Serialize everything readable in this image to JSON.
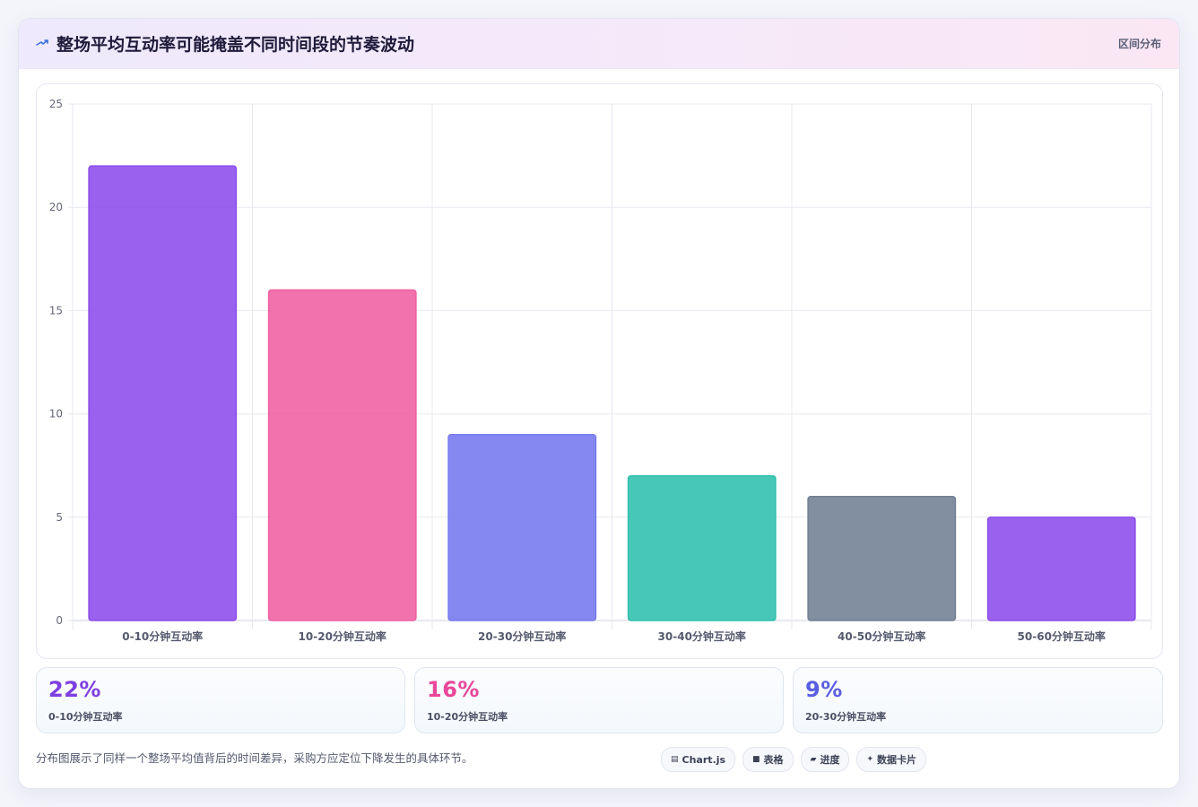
{
  "header": {
    "title": "整场平均互动率可能掩盖不同时间段的节奏波动",
    "badge": "区间分布"
  },
  "chart_data": {
    "type": "bar",
    "categories": [
      "0-10分钟互动率",
      "10-20分钟互动率",
      "20-30分钟互动率",
      "30-40分钟互动率",
      "40-50分钟互动率",
      "50-60分钟互动率"
    ],
    "values": [
      22,
      16,
      9,
      7,
      6,
      5
    ],
    "colors": [
      "#8b4bec",
      "#ef5ea2",
      "#7578ef",
      "#2dbfab",
      "#717f93",
      "#8b4bec"
    ],
    "ylim": [
      0,
      25
    ],
    "yticks": [
      0,
      5,
      10,
      15,
      20,
      25
    ],
    "grid": true,
    "legend": "none"
  },
  "stats": [
    {
      "value": "22%",
      "label": "0-10分钟互动率",
      "color": "#7e3fe0"
    },
    {
      "value": "16%",
      "label": "10-20分钟互动率",
      "color": "#e8479a"
    },
    {
      "value": "9%",
      "label": "20-30分钟互动率",
      "color": "#5b5ee0"
    }
  ],
  "footnote": "分布图展示了同样一个整场平均值背后的时间差异，采购方应定位下降发生的具体环节。",
  "tags": [
    {
      "icon": "chart-icon",
      "glyph": "▤",
      "label": "Chart.js"
    },
    {
      "icon": "table-icon",
      "glyph": "■",
      "label": "表格"
    },
    {
      "icon": "progress-icon",
      "glyph": "▰",
      "label": "进度"
    },
    {
      "icon": "sparkle-icon",
      "glyph": "✦",
      "label": "数据卡片"
    }
  ]
}
